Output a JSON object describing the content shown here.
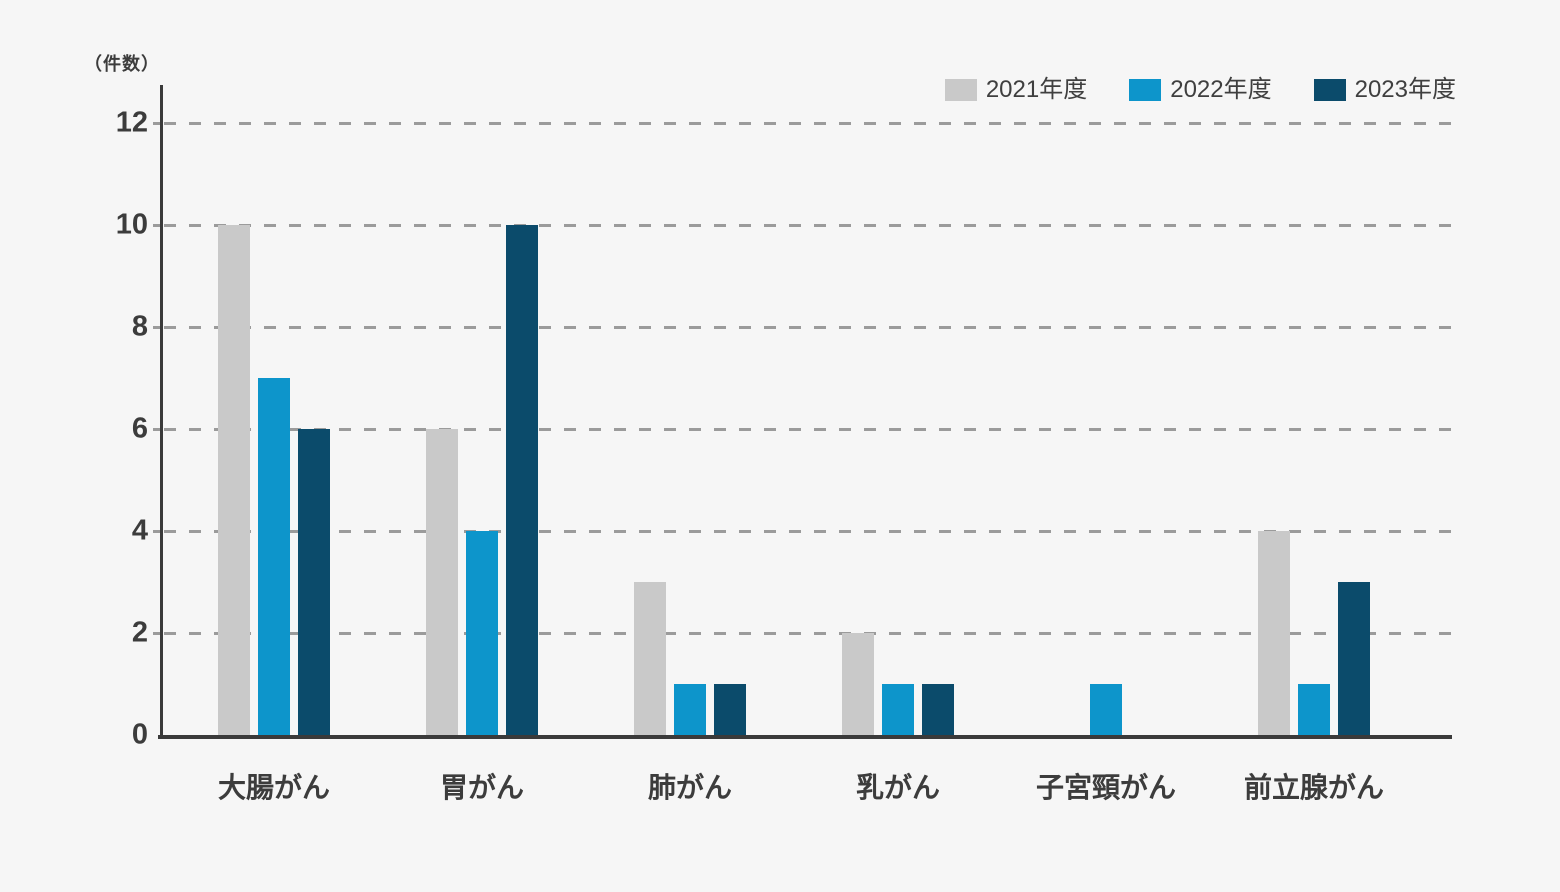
{
  "chart_data": {
    "type": "bar",
    "title": "",
    "unit_label": "（件数）",
    "categories": [
      "大腸がん",
      "胃がん",
      "肺がん",
      "乳がん",
      "子宮頸がん",
      "前立腺がん"
    ],
    "series": [
      {
        "name": "2021年度",
        "color": "#c9c9c9",
        "values": [
          10,
          6,
          3,
          2,
          0,
          4
        ]
      },
      {
        "name": "2022年度",
        "color": "#0d95cb",
        "values": [
          7,
          4,
          1,
          1,
          1,
          1
        ]
      },
      {
        "name": "2023年度",
        "color": "#0b4b6b",
        "values": [
          6,
          10,
          1,
          1,
          0,
          3
        ]
      }
    ],
    "y_ticks": [
      0,
      2,
      4,
      6,
      8,
      10,
      12
    ],
    "ylim": [
      0,
      12
    ],
    "grid": "horizontal-dashed",
    "legend_position": "top-right",
    "colors": {
      "background": "#f6f6f6",
      "axis": "#3a3a3a",
      "gridline": "#9b9b9b",
      "text": "#3c3c3c"
    }
  }
}
